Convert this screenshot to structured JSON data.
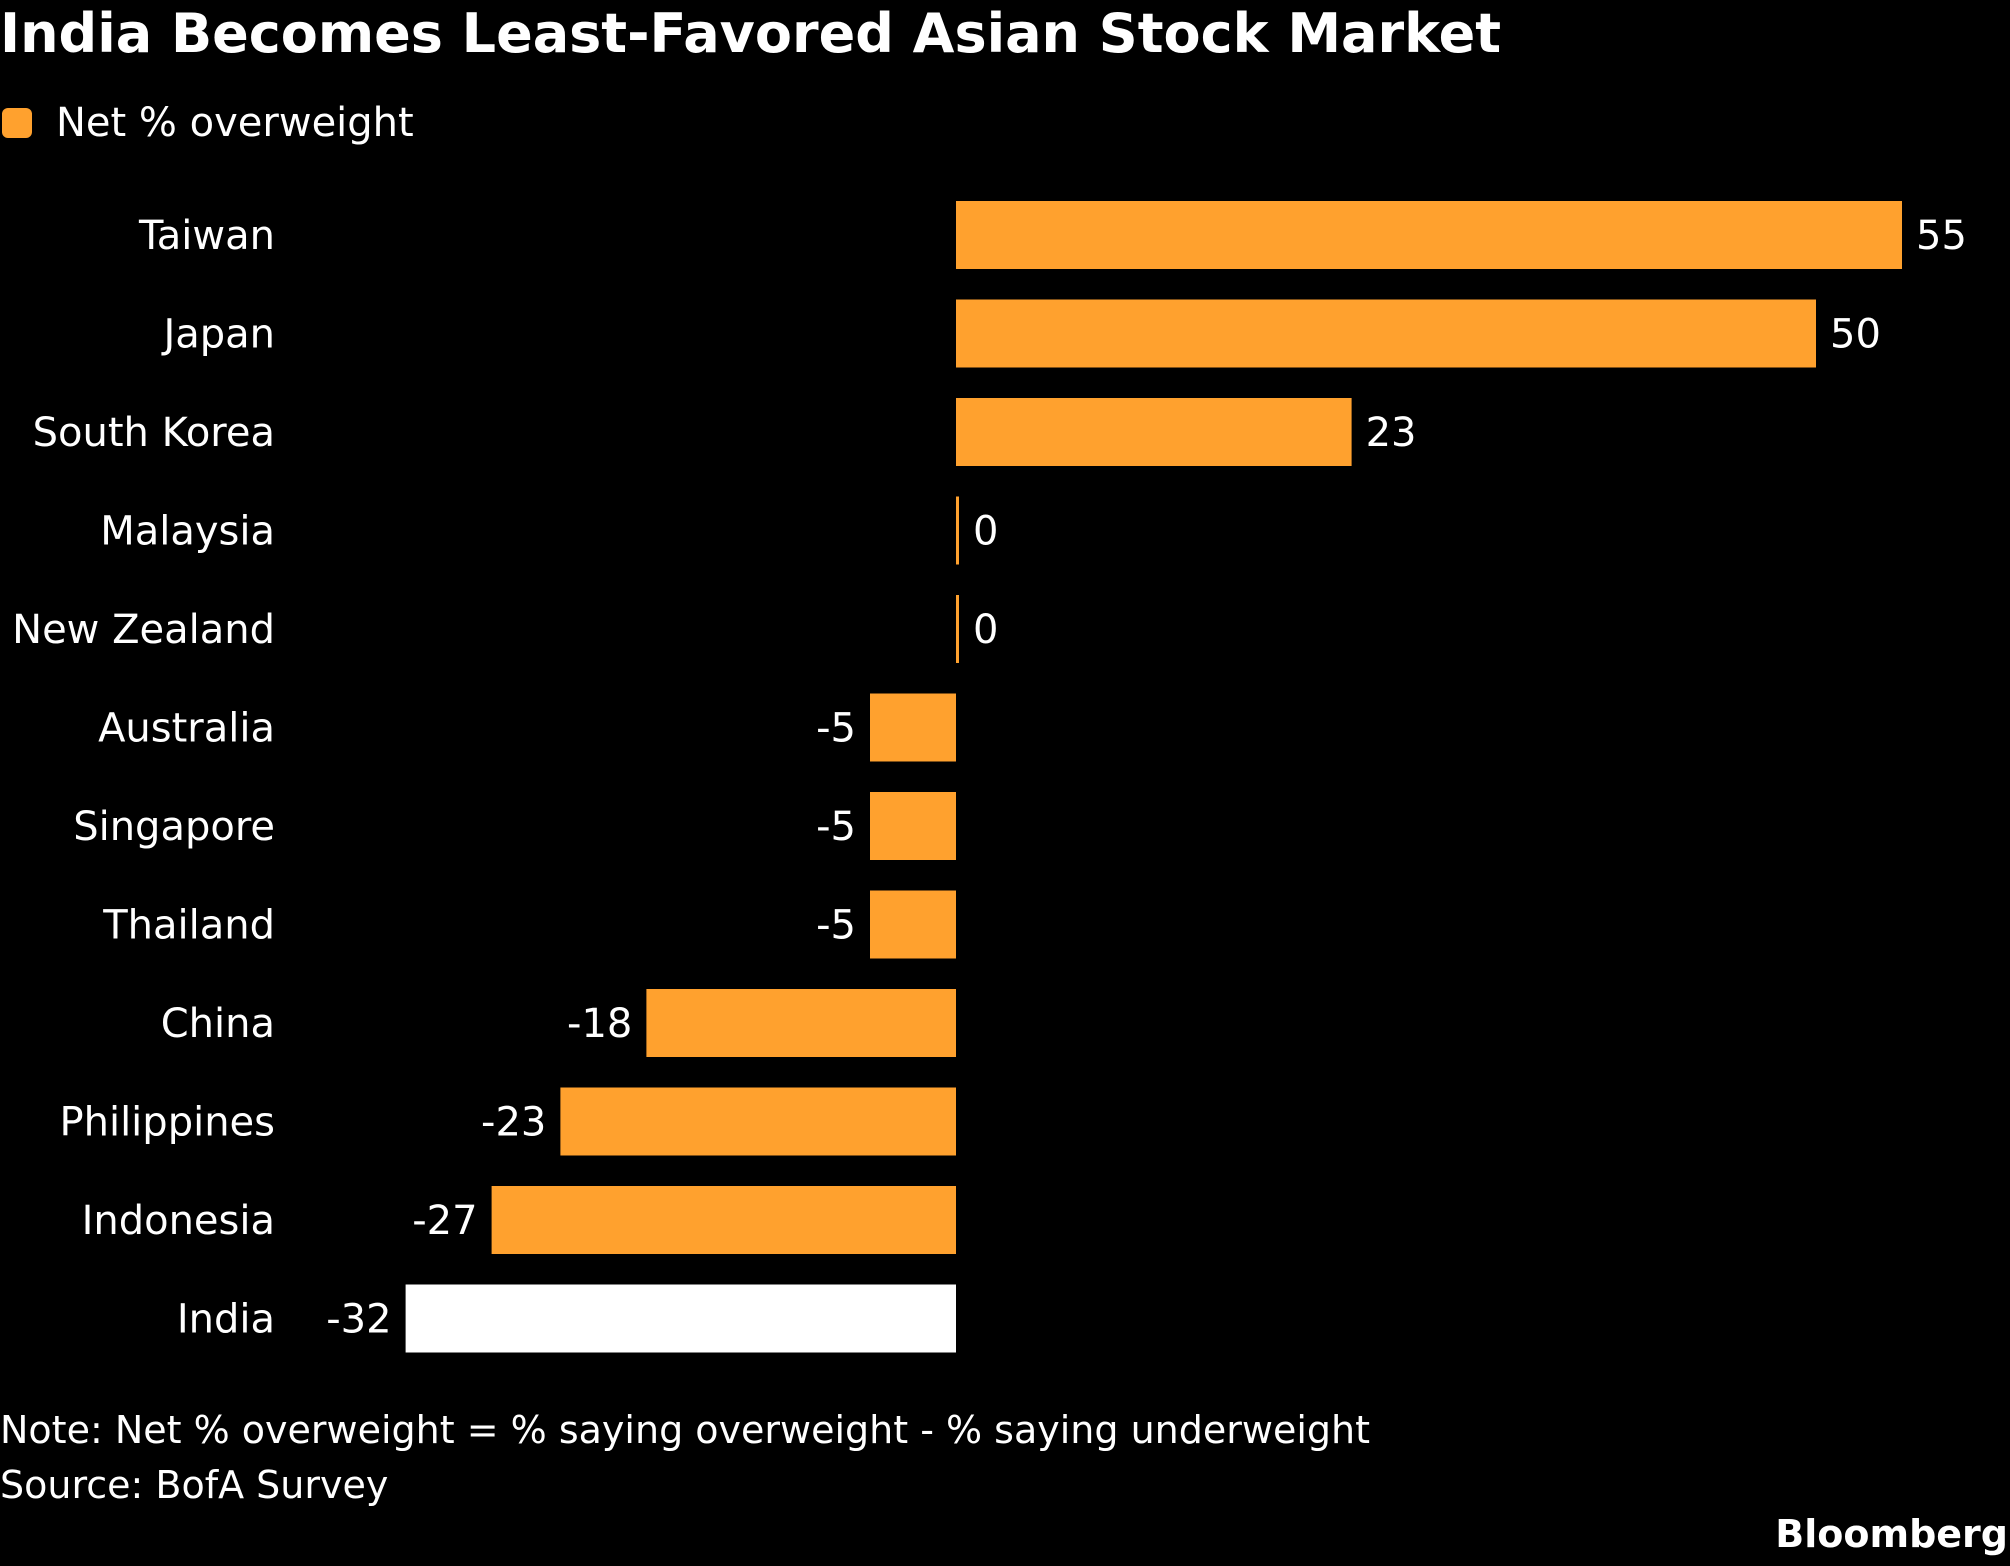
{
  "chart_data": {
    "type": "bar",
    "orientation": "horizontal",
    "title": "India Becomes Least-Favored Asian Stock Market",
    "legend": {
      "label": "Net % overweight",
      "placement": "top-left"
    },
    "categories": [
      "Taiwan",
      "Japan",
      "South Korea",
      "Malaysia",
      "New Zealand",
      "Australia",
      "Singapore",
      "Thailand",
      "China",
      "Philippines",
      "Indonesia",
      "India"
    ],
    "series": [
      {
        "name": "Net % overweight",
        "values": [
          55,
          50,
          23,
          0,
          0,
          -5,
          -5,
          -5,
          -18,
          -23,
          -27,
          -32
        ]
      }
    ],
    "value_labels": [
      "55",
      "50",
      "23",
      "0",
      "0",
      "-5",
      "-5",
      "-5",
      "-18",
      "-23",
      "-27",
      "-32"
    ],
    "highlighted_category": "India",
    "colors": {
      "bar": "#FFA12E",
      "highlight": "#FFFFFF",
      "background": "#000000",
      "text": "#FFFFFF"
    },
    "xlim": [
      -32,
      55
    ],
    "grid": false,
    "note": "Note: Net % overweight = % saying overweight - % saying underweight",
    "source": "Source: BofA Survey"
  },
  "branding": {
    "logo_text": "Bloomberg"
  }
}
